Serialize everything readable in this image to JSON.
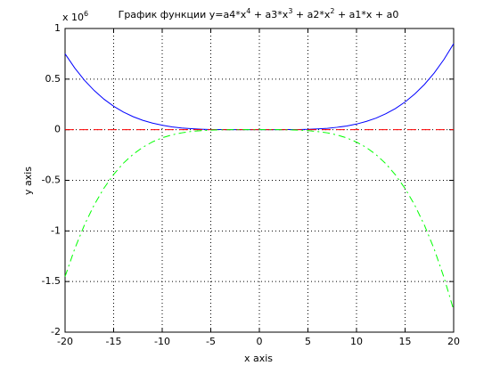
{
  "chart_data": {
    "type": "line",
    "title": [
      "График функции y=a4*x",
      "4",
      " + a3*x",
      "3",
      " + a2*x",
      "2",
      " + a1*x + a0"
    ],
    "y_multiplier": [
      "x 10",
      "6"
    ],
    "xlabel": "x axis",
    "ylabel": "y axis",
    "x": [
      -20,
      -19,
      -18,
      -17,
      -16,
      -15,
      -14,
      -13,
      -12,
      -11,
      -10,
      -9,
      -8,
      -7,
      -6,
      -5,
      -4,
      -3,
      -2,
      -1,
      0,
      1,
      2,
      3,
      4,
      5,
      6,
      7,
      8,
      9,
      10,
      11,
      12,
      13,
      14,
      15,
      16,
      17,
      18,
      19,
      20
    ],
    "series": [
      {
        "color": "#0000ff",
        "dash": "none",
        "values": [
          0.75,
          0.609,
          0.488,
          0.387,
          0.302,
          0.232,
          0.175,
          0.129,
          0.093,
          0.065,
          0.044,
          0.028,
          0.017,
          0.01,
          0.005,
          0.002,
          0.001,
          0,
          0,
          0,
          0,
          0,
          0,
          0.001,
          0.002,
          0.004,
          0.008,
          0.014,
          0.024,
          0.037,
          0.056,
          0.082,
          0.114,
          0.157,
          0.209,
          0.274,
          0.353,
          0.448,
          0.561,
          0.694,
          0.85
        ]
      },
      {
        "color": "#ff0000",
        "dash": "10 6",
        "values": [
          0,
          0,
          0,
          0,
          0,
          0,
          0,
          0,
          0,
          0,
          0,
          0,
          0,
          0,
          0,
          0,
          0,
          0,
          0,
          0,
          0,
          0,
          0,
          0,
          0,
          0,
          0,
          0,
          0,
          0,
          0,
          0,
          0,
          0,
          0,
          0,
          0,
          0,
          0,
          0,
          0
        ]
      },
      {
        "color": "#00ff00",
        "dash": "8 4 2 4",
        "values": [
          -1.451,
          -1.175,
          -0.94,
          -0.742,
          -0.578,
          -0.442,
          -0.331,
          -0.243,
          -0.174,
          -0.12,
          -0.08,
          -0.051,
          -0.031,
          -0.017,
          -0.009,
          -0.004,
          -0.001,
          0,
          0,
          0,
          0,
          0,
          0,
          -0.001,
          -0.004,
          -0.009,
          -0.018,
          -0.031,
          -0.052,
          -0.081,
          -0.122,
          -0.175,
          -0.245,
          -0.334,
          -0.445,
          -0.581,
          -0.746,
          -0.945,
          -1.18,
          -1.458,
          -1.781
        ]
      }
    ],
    "xlim": [
      -20,
      20
    ],
    "xticks": [
      -20,
      -15,
      -10,
      -5,
      0,
      5,
      10,
      15,
      20
    ],
    "ylim": [
      -2,
      1
    ],
    "yticks": [
      -2,
      -1.5,
      -1,
      -0.5,
      0,
      0.5,
      1
    ],
    "grid": true
  }
}
